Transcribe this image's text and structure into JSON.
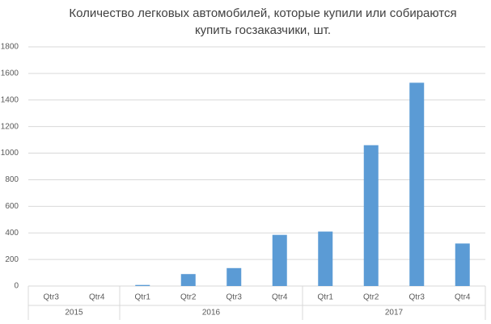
{
  "chart_data": {
    "type": "bar",
    "title": [
      "Количество  легковых автомобилей, которые купили или собираются",
      "купить госзаказчики, шт."
    ],
    "groups": [
      {
        "label": "2015",
        "categories": [
          "Qtr3",
          "Qtr4"
        ],
        "values": [
          0,
          0
        ]
      },
      {
        "label": "2016",
        "categories": [
          "Qtr1",
          "Qtr2",
          "Qtr3",
          "Qtr4"
        ],
        "values": [
          8,
          90,
          135,
          385
        ]
      },
      {
        "label": "2017",
        "categories": [
          "Qtr1",
          "Qtr2",
          "Qtr3",
          "Qtr4"
        ],
        "values": [
          410,
          1060,
          1530,
          320
        ]
      }
    ],
    "color": "#5b9bd5",
    "ylim": [
      0,
      1800
    ],
    "yticks": [
      0,
      200,
      400,
      600,
      800,
      1000,
      1200,
      1400,
      1600,
      1800
    ],
    "grid": true
  }
}
